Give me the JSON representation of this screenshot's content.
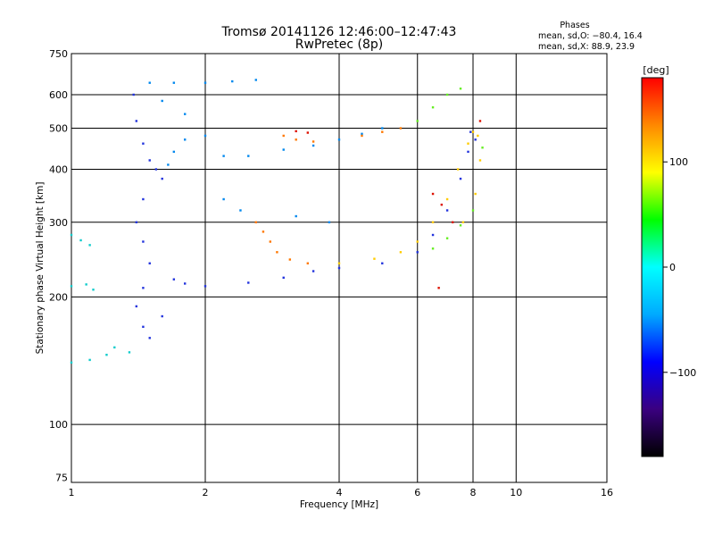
{
  "chart_data": {
    "type": "scatter",
    "title": "Tromsø 20141126 12:46:00–12:47:43",
    "subtitle": "RwPretec (8p)",
    "xlabel": "Frequency [MHz]",
    "ylabel": "Stationary phase Virtual Height [km]",
    "x_scale": "log",
    "y_scale": "log",
    "xlim": [
      1,
      16
    ],
    "ylim": [
      73,
      750
    ],
    "x_ticks": [
      1,
      2,
      4,
      6,
      8,
      10,
      16
    ],
    "y_ticks": [
      75,
      100,
      200,
      300,
      400,
      500,
      600,
      750
    ],
    "grid": true,
    "stats": {
      "heading": "Phases",
      "line1": "mean, sd,O: −80.4, 16.4",
      "line2": "mean, sd,X:  88.9, 23.9"
    },
    "colorbar": {
      "label": "[deg]",
      "range": [
        -180,
        180
      ],
      "ticks": [
        100,
        0,
        -100
      ],
      "palette": [
        "#000000",
        "#3a0080",
        "#0000ff",
        "#00aaff",
        "#00ffff",
        "#00ff00",
        "#ffff00",
        "#ff8800",
        "#ff0000"
      ]
    },
    "series": [
      {
        "color": "#2233dd",
        "points": [
          [
            1.38,
            600
          ],
          [
            1.4,
            520
          ],
          [
            1.45,
            460
          ],
          [
            1.5,
            420
          ],
          [
            1.55,
            400
          ],
          [
            1.6,
            380
          ],
          [
            1.45,
            340
          ],
          [
            1.4,
            300
          ],
          [
            1.45,
            270
          ],
          [
            1.5,
            240
          ],
          [
            1.45,
            210
          ],
          [
            1.4,
            190
          ],
          [
            1.45,
            170
          ],
          [
            1.5,
            160
          ],
          [
            1.6,
            180
          ],
          [
            1.7,
            220
          ],
          [
            1.8,
            215
          ],
          [
            2.0,
            212
          ],
          [
            2.5,
            216
          ],
          [
            3.0,
            222
          ],
          [
            3.5,
            230
          ],
          [
            4.0,
            234
          ],
          [
            5.0,
            240
          ],
          [
            6.0,
            255
          ],
          [
            6.5,
            280
          ],
          [
            7.0,
            320
          ],
          [
            7.5,
            380
          ],
          [
            7.8,
            440
          ],
          [
            7.9,
            490
          ],
          [
            8.1,
            470
          ]
        ]
      },
      {
        "color": "#0088ee",
        "points": [
          [
            1.5,
            640
          ],
          [
            1.7,
            640
          ],
          [
            2.0,
            640
          ],
          [
            2.3,
            645
          ],
          [
            2.6,
            650
          ],
          [
            1.6,
            580
          ],
          [
            1.8,
            540
          ],
          [
            2.0,
            480
          ],
          [
            2.2,
            430
          ],
          [
            2.5,
            430
          ],
          [
            3.0,
            445
          ],
          [
            3.5,
            455
          ],
          [
            4.0,
            470
          ],
          [
            4.5,
            485
          ],
          [
            5.0,
            500
          ],
          [
            1.8,
            470
          ],
          [
            1.7,
            440
          ],
          [
            1.65,
            410
          ],
          [
            2.2,
            340
          ],
          [
            2.4,
            320
          ],
          [
            3.2,
            310
          ],
          [
            3.8,
            300
          ]
        ]
      },
      {
        "color": "#11cccc",
        "points": [
          [
            1.0,
            280
          ],
          [
            1.05,
            272
          ],
          [
            1.1,
            265
          ],
          [
            1.0,
            212
          ],
          [
            1.08,
            214
          ],
          [
            1.12,
            208
          ],
          [
            1.0,
            140
          ],
          [
            1.1,
            142
          ],
          [
            1.2,
            146
          ],
          [
            1.25,
            152
          ],
          [
            1.35,
            148
          ]
        ]
      },
      {
        "color": "#ff7700",
        "points": [
          [
            2.6,
            300
          ],
          [
            2.7,
            285
          ],
          [
            2.8,
            270
          ],
          [
            3.0,
            480
          ],
          [
            3.2,
            470
          ],
          [
            3.5,
            465
          ],
          [
            4.5,
            480
          ],
          [
            5.0,
            490
          ],
          [
            5.5,
            500
          ],
          [
            2.9,
            255
          ],
          [
            3.1,
            245
          ],
          [
            3.4,
            240
          ]
        ]
      },
      {
        "color": "#ffcc00",
        "points": [
          [
            4.0,
            240
          ],
          [
            4.8,
            246
          ],
          [
            5.5,
            255
          ],
          [
            6.0,
            270
          ],
          [
            6.5,
            300
          ],
          [
            7.0,
            340
          ],
          [
            7.4,
            400
          ],
          [
            7.8,
            460
          ],
          [
            8.0,
            490
          ],
          [
            8.2,
            480
          ],
          [
            8.3,
            420
          ],
          [
            8.1,
            350
          ],
          [
            7.6,
            300
          ]
        ]
      },
      {
        "color": "#66ee22",
        "points": [
          [
            6.0,
            520
          ],
          [
            6.5,
            560
          ],
          [
            7.0,
            600
          ],
          [
            7.5,
            620
          ],
          [
            6.5,
            260
          ],
          [
            7.0,
            275
          ],
          [
            7.5,
            295
          ],
          [
            8.0,
            320
          ],
          [
            8.4,
            450
          ]
        ]
      },
      {
        "color": "#dd1100",
        "points": [
          [
            3.2,
            492
          ],
          [
            3.4,
            488
          ],
          [
            6.5,
            350
          ],
          [
            6.8,
            330
          ],
          [
            7.2,
            300
          ],
          [
            6.7,
            210
          ],
          [
            8.3,
            520
          ]
        ]
      }
    ]
  }
}
